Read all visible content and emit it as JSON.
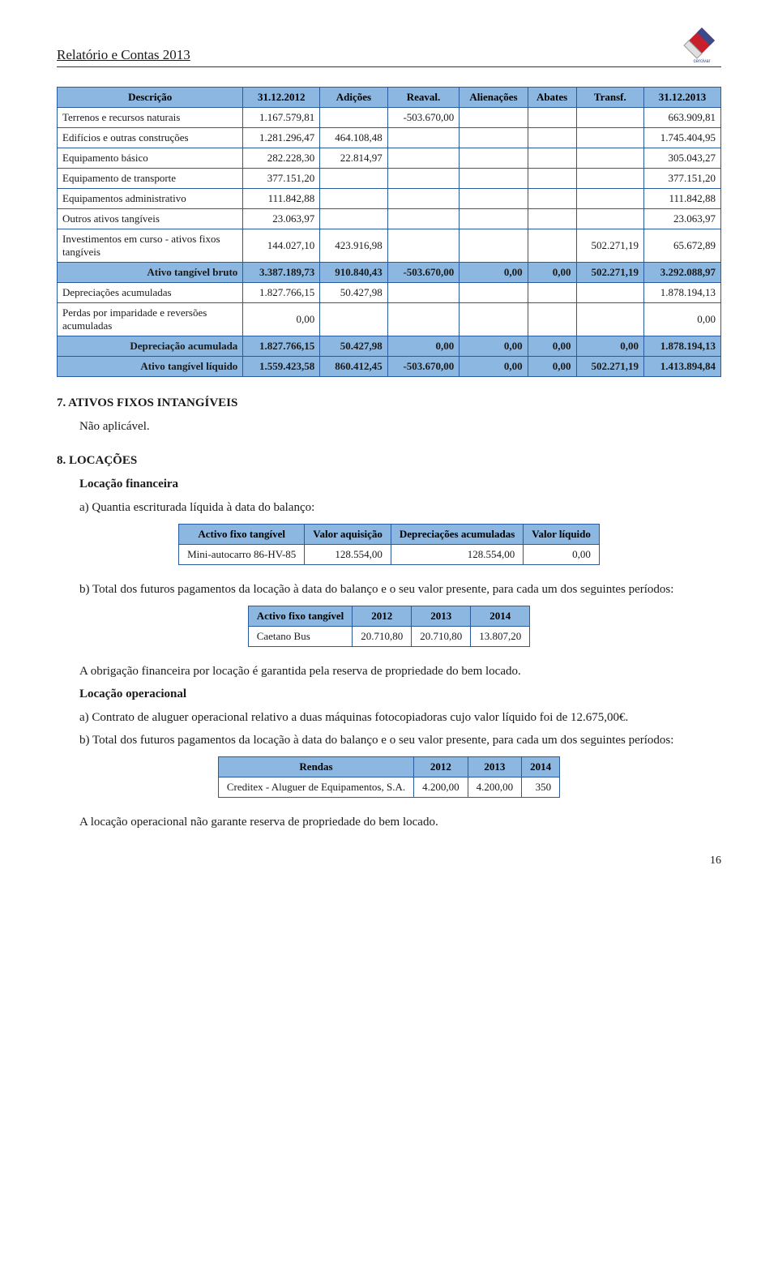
{
  "header": {
    "title": "Relatório e Contas 2013",
    "logo_name": "logo-cercivar"
  },
  "main_table": {
    "columns": [
      "Descrição",
      "31.12.2012",
      "Adições",
      "Reaval.",
      "Alienações",
      "Abates",
      "Transf.",
      "31.12.2013"
    ],
    "rows": [
      {
        "desc": "Terrenos e recursos naturais",
        "vals": [
          "1.167.579,81",
          "",
          "",
          "-503.670,00",
          "",
          "",
          "",
          "663.909,81"
        ],
        "bold": false,
        "shade": false
      },
      {
        "desc": "Edifícios e outras construções",
        "vals": [
          "1.281.296,47",
          "464.108,48",
          "",
          "",
          "",
          "",
          "",
          "1.745.404,95"
        ],
        "bold": false,
        "shade": false
      },
      {
        "desc": "Equipamento básico",
        "vals": [
          "282.228,30",
          "22.814,97",
          "",
          "",
          "",
          "",
          "",
          "305.043,27"
        ],
        "bold": false,
        "shade": false
      },
      {
        "desc": "Equipamento de transporte",
        "vals": [
          "377.151,20",
          "",
          "",
          "",
          "",
          "",
          "",
          "377.151,20"
        ],
        "bold": false,
        "shade": false
      },
      {
        "desc": "Equipamentos administrativo",
        "vals": [
          "111.842,88",
          "",
          "",
          "",
          "",
          "",
          "",
          "111.842,88"
        ],
        "bold": false,
        "shade": false
      },
      {
        "desc": "Outros ativos tangíveis",
        "vals": [
          "23.063,97",
          "",
          "",
          "",
          "",
          "",
          "",
          "23.063,97"
        ],
        "bold": false,
        "shade": false
      },
      {
        "desc": "Investimentos em curso - ativos fixos tangíveis",
        "vals": [
          "144.027,10",
          "423.916,98",
          "",
          "",
          "",
          "",
          "502.271,19",
          "65.672,89"
        ],
        "bold": false,
        "shade": false
      },
      {
        "desc": "Ativo tangível bruto",
        "vals": [
          "3.387.189,73",
          "910.840,43",
          "",
          "-503.670,00",
          "0,00",
          "0,00",
          "502.271,19",
          "3.292.088,97"
        ],
        "bold": true,
        "shade": true
      },
      {
        "desc": "Depreciações acumuladas",
        "vals": [
          "1.827.766,15",
          "50.427,98",
          "",
          "",
          "",
          "",
          "",
          "1.878.194,13"
        ],
        "bold": false,
        "shade": false
      },
      {
        "desc": "Perdas por imparidade e reversões acumuladas",
        "vals": [
          "0,00",
          "",
          "",
          "",
          "",
          "",
          "",
          "0,00"
        ],
        "bold": false,
        "shade": false
      },
      {
        "desc": "Depreciação acumulada",
        "vals": [
          "1.827.766,15",
          "50.427,98",
          "",
          "0,00",
          "0,00",
          "0,00",
          "0,00",
          "1.878.194,13"
        ],
        "bold": true,
        "shade": true
      },
      {
        "desc": "Ativo tangível líquido",
        "vals": [
          "1.559.423,58",
          "860.412,45",
          "",
          "-503.670,00",
          "0,00",
          "0,00",
          "502.271,19",
          "1.413.894,84"
        ],
        "bold": true,
        "shade": true
      }
    ]
  },
  "sections": {
    "sec7_title": "7.   ATIVOS FIXOS INTANGÍVEIS",
    "sec7_text": "Não aplicável.",
    "sec8_title": "8.   LOCAÇÕES",
    "loc_fin_heading": "Locação financeira",
    "loc_fin_a": "a) Quantia escriturada líquida à data do balanço:",
    "loc_fin_b": "b) Total dos futuros pagamentos da locação à data do balanço e o seu valor presente, para cada um dos seguintes períodos:",
    "loc_fin_guarantee": "A obrigação financeira por locação é garantida pela reserva de propriedade do bem locado.",
    "loc_op_heading": "Locação operacional",
    "loc_op_a": "a) Contrato de aluguer operacional relativo a duas máquinas fotocopiadoras cujo valor líquido foi de 12.675,00€.",
    "loc_op_b": "b) Total dos futuros pagamentos da locação à data do balanço e o seu valor presente, para cada um dos seguintes períodos:",
    "loc_op_guarantee": "A locação operacional não garante reserva de propriedade do bem locado."
  },
  "table_balance": {
    "columns": [
      "Activo fixo tangível",
      "Valor aquisição",
      "Depreciações acumuladas",
      "Valor líquido"
    ],
    "row_label": "Mini-autocarro 86-HV-85",
    "row_vals": [
      "128.554,00",
      "128.554,00",
      "0,00"
    ]
  },
  "table_future": {
    "columns": [
      "Activo fixo tangível",
      "2012",
      "2013",
      "2014"
    ],
    "row_label": "Caetano Bus",
    "row_vals": [
      "20.710,80",
      "20.710,80",
      "13.807,20"
    ]
  },
  "table_rendas": {
    "columns": [
      "Rendas",
      "2012",
      "2013",
      "2014"
    ],
    "row_label": "Creditex - Aluguer de Equipamentos, S.A.",
    "row_vals": [
      "4.200,00",
      "4.200,00",
      "350"
    ]
  },
  "page_number": "16"
}
